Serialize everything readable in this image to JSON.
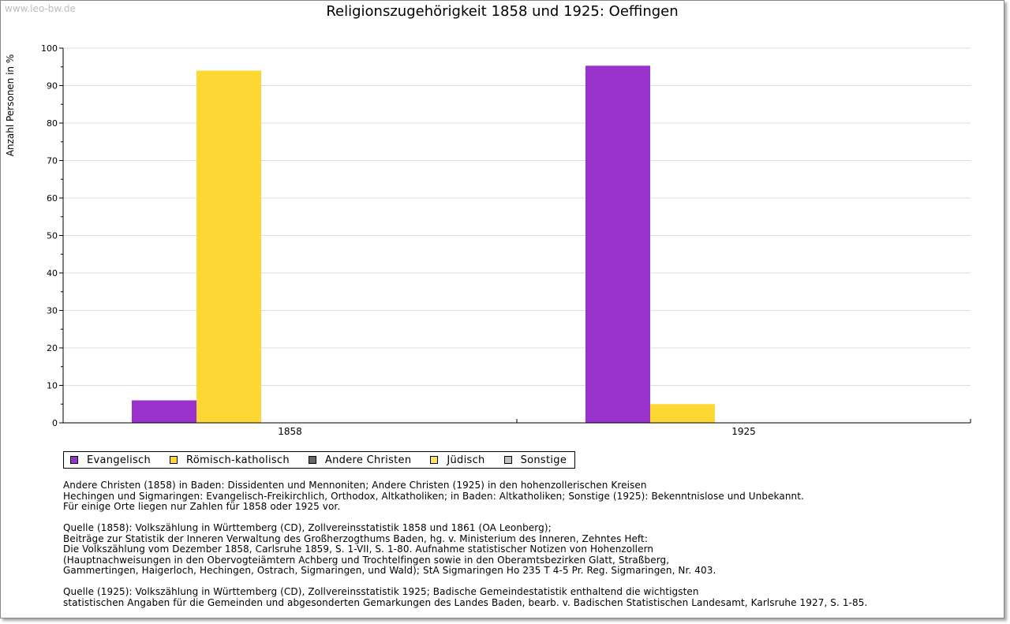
{
  "watermark": "www.leo-bw.de",
  "chart_data": {
    "type": "bar",
    "title": "Religionszugehörigkeit 1858 und 1925: Oeffingen",
    "ylabel": "Anzahl Personen in %",
    "xlabel": "",
    "ylim": [
      0,
      100
    ],
    "yticks": [
      0,
      10,
      20,
      30,
      40,
      50,
      60,
      70,
      80,
      90,
      100
    ],
    "grid": true,
    "legend_position": "bottom-left",
    "categories": [
      "1858",
      "1925"
    ],
    "series": [
      {
        "name": "Evangelisch",
        "color": "#9932cc",
        "values": [
          6,
          95.3
        ]
      },
      {
        "name": "Römisch-katholisch",
        "color": "#fdd835",
        "values": [
          94,
          5
        ]
      },
      {
        "name": "Andere Christen",
        "color": "#666666",
        "values": [
          0,
          0
        ]
      },
      {
        "name": "Jüdisch",
        "color": "#fde267",
        "values": [
          0,
          0
        ]
      },
      {
        "name": "Sonstige",
        "color": "#c0c0c0",
        "values": [
          0,
          0
        ]
      }
    ]
  },
  "notes": [
    [
      "Andere Christen (1858) in Baden: Dissidenten und Mennoniten; Andere Christen (1925) in den hohenzollerischen Kreisen",
      "Hechingen und Sigmaringen: Evangelisch-Freikirchlich, Orthodox, Altkatholiken; in Baden: Altkatholiken; Sonstige (1925): Bekenntnislose und Unbekannt.",
      "Für einige Orte liegen nur Zahlen für 1858 oder 1925 vor."
    ],
    [
      "Quelle (1858): Volkszählung in Württemberg (CD), Zollvereinsstatistik 1858 und 1861 (OA Leonberg);",
      "Beiträge zur Statistik der Inneren Verwaltung des Großherzogthums Baden, hg. v. Ministerium des Inneren, Zehntes Heft:",
      "Die Volkszählung vom Dezember 1858, Carlsruhe 1859, S. 1-VII, S. 1-80. Aufnahme statistischer Notizen von Hohenzollern",
      "(Hauptnachweisungen in den Obervogteiämtern Achberg und Trochtelfingen sowie in den Oberamtsbezirken Glatt, Straßberg,",
      "Gammertingen, Haigerloch, Hechingen, Ostrach, Sigmaringen, und Wald); StA Sigmaringen Ho 235 T 4-5 Pr. Reg. Sigmaringen, Nr. 403."
    ],
    [
      "Quelle (1925): Volkszählung in Württemberg (CD), Zollvereinsstatistik 1925; Badische Gemeindestatistik enthaltend die wichtigsten",
      "statistischen Angaben für die Gemeinden und abgesonderten Gemarkungen des Landes Baden, bearb. v. Badischen Statistischen Landesamt, Karlsruhe 1927, S. 1-85."
    ]
  ]
}
